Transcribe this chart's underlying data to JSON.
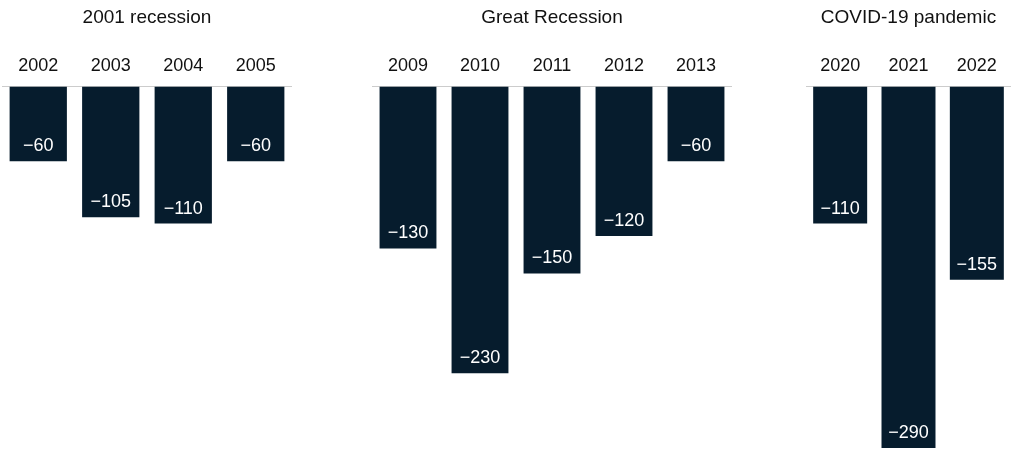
{
  "chart_data": [
    {
      "type": "bar",
      "title": "2001 recession",
      "categories": [
        "2002",
        "2003",
        "2004",
        "2005"
      ],
      "values": [
        -60,
        -105,
        -110,
        -60
      ],
      "color": "#061c2d",
      "data_labels": true
    },
    {
      "type": "bar",
      "title": "Great Recession",
      "categories": [
        "2009",
        "2010",
        "2011",
        "2012",
        "2013"
      ],
      "values": [
        -130,
        -230,
        -150,
        -120,
        -60
      ],
      "color": "#061c2d",
      "data_labels": true
    },
    {
      "type": "bar",
      "title": "COVID-19 pandemic",
      "categories": [
        "2020",
        "2021",
        "2022"
      ],
      "values": [
        -110,
        -290,
        -155
      ],
      "color": "#061c2d",
      "data_labels": true
    }
  ]
}
